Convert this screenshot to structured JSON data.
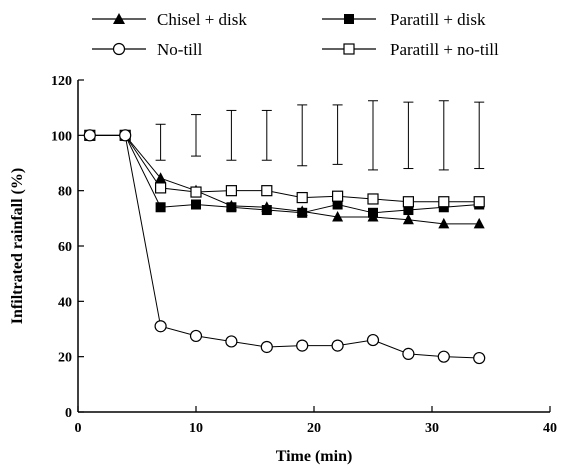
{
  "chart_data": {
    "type": "line",
    "title": "",
    "xlabel": "Time (min)",
    "ylabel": "Infiltrated rainfall (%)",
    "xlim": [
      0,
      40
    ],
    "ylim": [
      0,
      120
    ],
    "xticks": [
      0,
      10,
      20,
      30,
      40
    ],
    "yticks": [
      0,
      20,
      40,
      60,
      80,
      100,
      120
    ],
    "grid": false,
    "legend_position": "top",
    "series": [
      {
        "name": "Chisel + disk",
        "marker": "filled-triangle",
        "x": [
          1,
          4,
          7,
          10,
          13,
          16,
          19,
          22,
          25,
          28,
          31,
          34
        ],
        "y": [
          100,
          100,
          84.5,
          80,
          74.5,
          74,
          72.5,
          70.5,
          70.5,
          69.5,
          68,
          68
        ]
      },
      {
        "name": "Paratill + disk",
        "marker": "filled-square",
        "x": [
          1,
          4,
          7,
          10,
          13,
          16,
          19,
          22,
          25,
          28,
          31,
          34
        ],
        "y": [
          100,
          100,
          74,
          75,
          74,
          73,
          72,
          75,
          72,
          73,
          74,
          75
        ]
      },
      {
        "name": "No-till",
        "marker": "open-circle",
        "x": [
          1,
          4,
          7,
          10,
          13,
          16,
          19,
          22,
          25,
          28,
          31,
          34
        ],
        "y": [
          100,
          100,
          31,
          27.5,
          25.5,
          23.5,
          24,
          24,
          26,
          21,
          20,
          19.5
        ]
      },
      {
        "name": "Paratill + no-till",
        "marker": "open-square",
        "x": [
          1,
          4,
          7,
          10,
          13,
          16,
          19,
          22,
          25,
          28,
          31,
          34
        ],
        "y": [
          100,
          100,
          81,
          79.5,
          80,
          80,
          77.5,
          78,
          77,
          76,
          76,
          76
        ]
      }
    ],
    "error_bars": [
      {
        "x": 7,
        "low": 91,
        "high": 104
      },
      {
        "x": 10,
        "low": 92.5,
        "high": 107.5
      },
      {
        "x": 13,
        "low": 91,
        "high": 109
      },
      {
        "x": 16,
        "low": 91,
        "high": 109
      },
      {
        "x": 19,
        "low": 89,
        "high": 111
      },
      {
        "x": 22,
        "low": 89.5,
        "high": 111
      },
      {
        "x": 25,
        "low": 87.5,
        "high": 112.5
      },
      {
        "x": 28,
        "low": 88,
        "high": 112
      },
      {
        "x": 31,
        "low": 87.5,
        "high": 112.5
      },
      {
        "x": 34,
        "low": 88,
        "high": 112
      }
    ]
  }
}
